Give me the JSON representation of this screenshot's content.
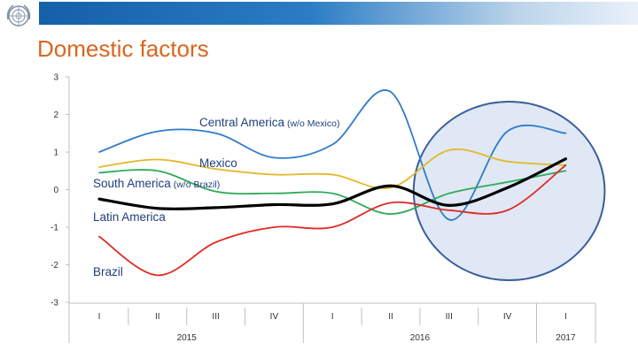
{
  "title": "Domestic factors",
  "chart_data": {
    "type": "line",
    "title": "Domestic factors",
    "xlabel": "",
    "ylabel": "",
    "ylim": [
      -3,
      3
    ],
    "yticks": [
      3,
      2,
      1,
      0,
      -1,
      -2,
      -3
    ],
    "categories": [
      "I",
      "II",
      "III",
      "IV",
      "I",
      "II",
      "III",
      "IV",
      "I"
    ],
    "year_labels": [
      "2015",
      "2016",
      "2017"
    ],
    "series": [
      {
        "name": "Central America",
        "label_main": "Central America",
        "label_note": "(w/o Mexico)",
        "color": "#2f7bc8",
        "values": [
          1.0,
          1.55,
          1.5,
          0.85,
          1.2,
          2.6,
          -0.8,
          1.55,
          1.5
        ]
      },
      {
        "name": "Mexico",
        "label_main": "Mexico",
        "label_note": "",
        "color": "#e3b82a",
        "values": [
          0.6,
          0.8,
          0.55,
          0.4,
          0.4,
          0.05,
          1.05,
          0.75,
          0.65
        ]
      },
      {
        "name": "South America",
        "label_main": "South America",
        "label_note": "(w/o Brazil)",
        "color": "#2eaa5a",
        "values": [
          0.45,
          0.5,
          -0.05,
          -0.1,
          -0.1,
          -0.65,
          -0.1,
          0.2,
          0.5
        ]
      },
      {
        "name": "Latin America",
        "label_main": "Latin America",
        "label_note": "",
        "color": "#000000",
        "values": [
          -0.25,
          -0.5,
          -0.48,
          -0.4,
          -0.38,
          0.1,
          -0.42,
          0.05,
          0.82
        ]
      },
      {
        "name": "Brazil",
        "label_main": "Brazil",
        "label_note": "",
        "color": "#e02a26",
        "values": [
          -1.25,
          -2.28,
          -1.4,
          -1.0,
          -1.0,
          -0.35,
          -0.55,
          -0.55,
          0.65
        ]
      }
    ],
    "highlight": {
      "from_category": 6,
      "to_category": 8,
      "fill": "#dfe8f4",
      "stroke": "#3b5f9a"
    },
    "grid": false,
    "legend": "inline labels"
  }
}
